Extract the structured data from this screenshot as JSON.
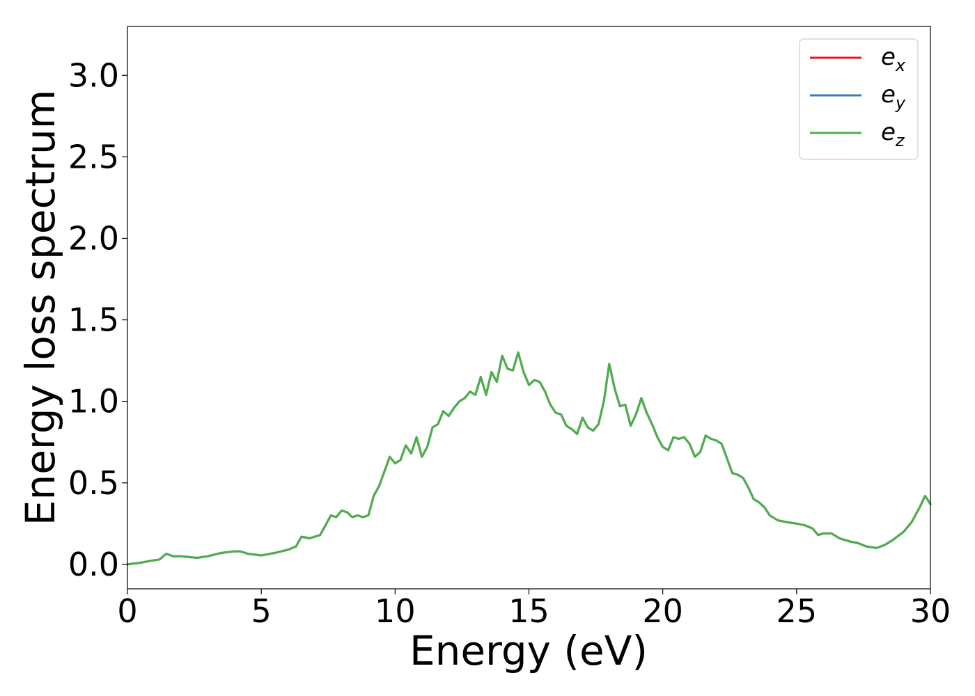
{
  "chart_data": {
    "type": "line",
    "title": "",
    "xlabel": "Energy (eV)",
    "ylabel": "Energy loss spectrum",
    "xlim": [
      0,
      30
    ],
    "ylim": [
      -0.15,
      3.3
    ],
    "xticks": [
      0,
      5,
      10,
      15,
      20,
      25,
      30
    ],
    "xtick_labels": [
      "0",
      "5",
      "10",
      "15",
      "20",
      "25",
      "30"
    ],
    "yticks": [
      0.0,
      0.5,
      1.0,
      1.5,
      2.0,
      2.5,
      3.0
    ],
    "ytick_labels": [
      "0.0",
      "0.5",
      "1.0",
      "1.5",
      "2.0",
      "2.5",
      "3.0"
    ],
    "grid": false,
    "legend_position": "top-right",
    "x": [
      0.0,
      0.5,
      0.8,
      1.2,
      1.45,
      1.7,
      2.0,
      2.6,
      3.0,
      3.5,
      4.0,
      4.2,
      4.5,
      5.0,
      5.5,
      6.0,
      6.3,
      6.5,
      6.8,
      7.2,
      7.4,
      7.6,
      7.8,
      8.0,
      8.2,
      8.4,
      8.6,
      8.8,
      9.0,
      9.2,
      9.4,
      9.6,
      9.8,
      10.0,
      10.2,
      10.4,
      10.6,
      10.8,
      11.0,
      11.2,
      11.4,
      11.6,
      11.8,
      12.0,
      12.2,
      12.4,
      12.6,
      12.8,
      13.0,
      13.2,
      13.4,
      13.6,
      13.8,
      14.0,
      14.2,
      14.4,
      14.6,
      14.8,
      15.0,
      15.2,
      15.4,
      15.6,
      15.8,
      16.0,
      16.2,
      16.4,
      16.6,
      16.8,
      17.0,
      17.2,
      17.4,
      17.6,
      17.8,
      18.0,
      18.2,
      18.4,
      18.6,
      18.8,
      19.0,
      19.2,
      19.4,
      19.6,
      19.8,
      20.0,
      20.2,
      20.4,
      20.6,
      20.8,
      21.0,
      21.2,
      21.4,
      21.6,
      21.8,
      22.0,
      22.2,
      22.4,
      22.6,
      22.8,
      23.0,
      23.2,
      23.4,
      23.6,
      23.8,
      24.0,
      24.3,
      24.6,
      25.0,
      25.3,
      25.6,
      25.8,
      26.0,
      26.3,
      26.6,
      27.0,
      27.3,
      27.6,
      28.0,
      28.3,
      28.6,
      29.0,
      29.3,
      29.6,
      29.8,
      30.0
    ],
    "y": [
      0.0,
      0.01,
      0.02,
      0.03,
      0.065,
      0.05,
      0.05,
      0.04,
      0.05,
      0.07,
      0.08,
      0.08,
      0.065,
      0.055,
      0.07,
      0.09,
      0.11,
      0.17,
      0.16,
      0.18,
      0.24,
      0.3,
      0.29,
      0.33,
      0.32,
      0.29,
      0.3,
      0.29,
      0.3,
      0.42,
      0.48,
      0.57,
      0.66,
      0.62,
      0.64,
      0.73,
      0.68,
      0.78,
      0.66,
      0.72,
      0.84,
      0.86,
      0.94,
      0.91,
      0.96,
      1.0,
      1.02,
      1.06,
      1.04,
      1.15,
      1.04,
      1.18,
      1.12,
      1.28,
      1.2,
      1.19,
      1.3,
      1.18,
      1.1,
      1.13,
      1.12,
      1.06,
      0.98,
      0.93,
      0.92,
      0.85,
      0.83,
      0.8,
      0.9,
      0.84,
      0.82,
      0.86,
      1.0,
      1.23,
      1.08,
      0.97,
      0.98,
      0.85,
      0.92,
      1.02,
      0.93,
      0.86,
      0.78,
      0.72,
      0.7,
      0.78,
      0.77,
      0.78,
      0.74,
      0.66,
      0.69,
      0.79,
      0.77,
      0.76,
      0.74,
      0.65,
      0.56,
      0.55,
      0.53,
      0.47,
      0.4,
      0.38,
      0.35,
      0.3,
      0.27,
      0.26,
      0.25,
      0.24,
      0.22,
      0.18,
      0.19,
      0.19,
      0.16,
      0.14,
      0.13,
      0.11,
      0.1,
      0.12,
      0.15,
      0.2,
      0.26,
      0.35,
      0.42,
      0.37
    ],
    "series": [
      {
        "name": "e_x",
        "label_main": "e",
        "label_sub": "x",
        "color": "#e41a1c"
      },
      {
        "name": "e_y",
        "label_main": "e",
        "label_sub": "y",
        "color": "#377eb8"
      },
      {
        "name": "e_z",
        "label_main": "e",
        "label_sub": "z",
        "color": "#4daf4a"
      }
    ]
  }
}
